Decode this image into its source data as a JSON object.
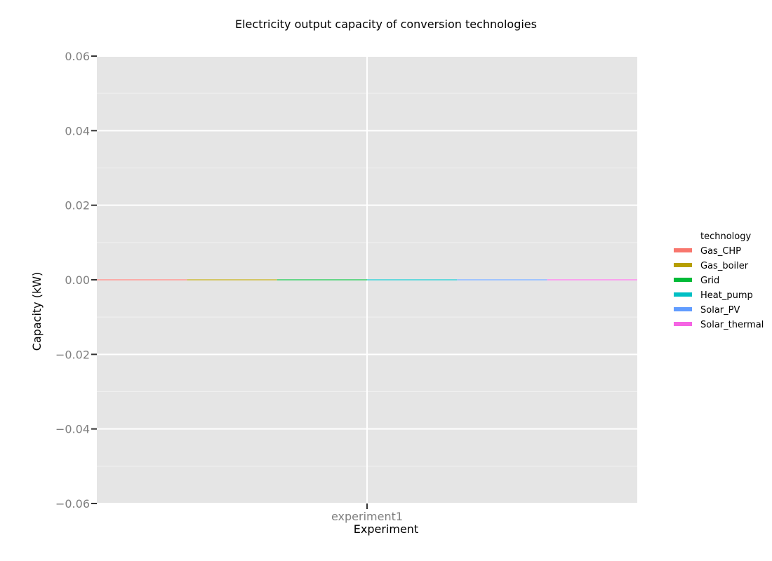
{
  "chart_data": {
    "type": "bar",
    "title": "Electricity output capacity of conversion technologies",
    "xlabel": "Experiment",
    "ylabel": "Capacity (kW)",
    "categories": [
      "experiment1"
    ],
    "ylim": [
      -0.06,
      0.06
    ],
    "y_ticks": [
      0.06,
      0.04,
      0.02,
      0.0,
      -0.02,
      -0.04,
      -0.06
    ],
    "y_tick_labels": [
      "0.06",
      "0.04",
      "0.02",
      "0.00",
      "−0.02",
      "−0.04",
      "−0.06"
    ],
    "grid": true,
    "legend": {
      "title": "technology",
      "position": "right"
    },
    "series": [
      {
        "name": "Gas_CHP",
        "color": "#f8766d",
        "values": [
          0
        ]
      },
      {
        "name": "Gas_boiler",
        "color": "#b79f00",
        "values": [
          0
        ]
      },
      {
        "name": "Grid",
        "color": "#00ba38",
        "values": [
          0
        ]
      },
      {
        "name": "Heat_pump",
        "color": "#00bfc4",
        "values": [
          0
        ]
      },
      {
        "name": "Solar_PV",
        "color": "#619cff",
        "values": [
          0
        ]
      },
      {
        "name": "Solar_thermal",
        "color": "#f564e3",
        "values": [
          0
        ]
      }
    ]
  }
}
